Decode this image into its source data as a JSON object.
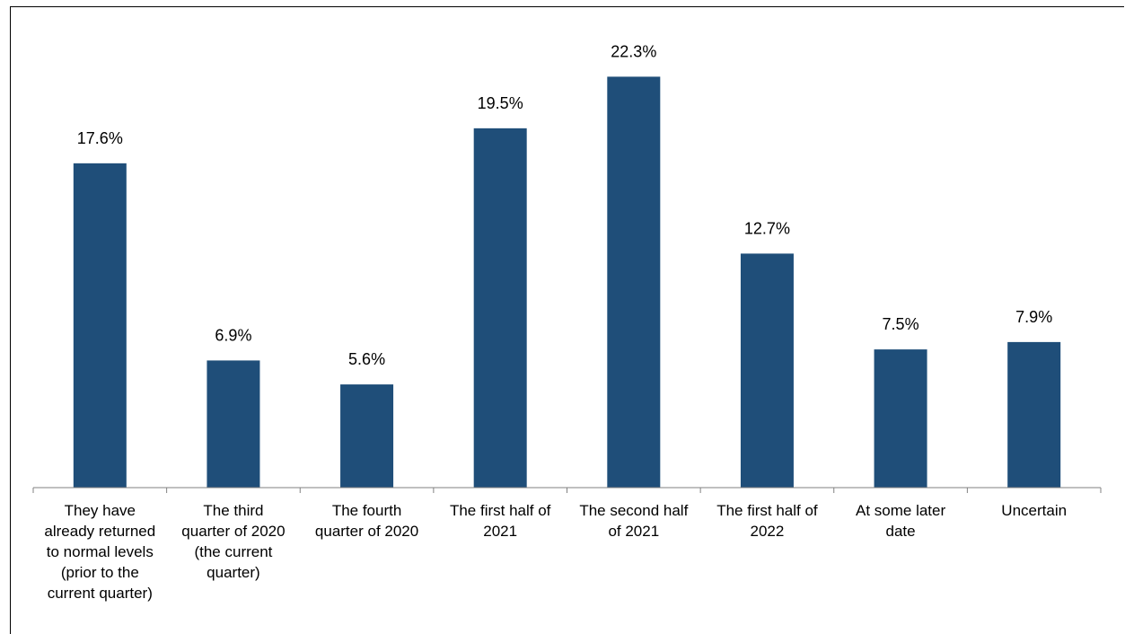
{
  "chart_data": {
    "type": "bar",
    "title": "",
    "xlabel": "",
    "ylabel": "",
    "ylim": [
      0,
      25
    ],
    "grid": false,
    "legend": "none",
    "bar_color": "#1f4e79",
    "categories": [
      [
        "They have",
        "already returned",
        "to normal levels",
        "(prior to the",
        "current quarter)"
      ],
      [
        "The third",
        "quarter of 2020",
        "(the current",
        "quarter)"
      ],
      [
        "The fourth",
        "quarter of 2020"
      ],
      [
        "The first half of",
        "2021"
      ],
      [
        "The second half",
        "of 2021"
      ],
      [
        "The first half of",
        "2022"
      ],
      [
        "At some later",
        "date"
      ],
      [
        "Uncertain"
      ]
    ],
    "values": [
      17.6,
      6.9,
      5.6,
      19.5,
      22.3,
      12.7,
      7.5,
      7.9
    ],
    "value_labels": [
      "17.6%",
      "6.9%",
      "5.6%",
      "19.5%",
      "22.3%",
      "12.7%",
      "7.5%",
      "7.9%"
    ]
  }
}
